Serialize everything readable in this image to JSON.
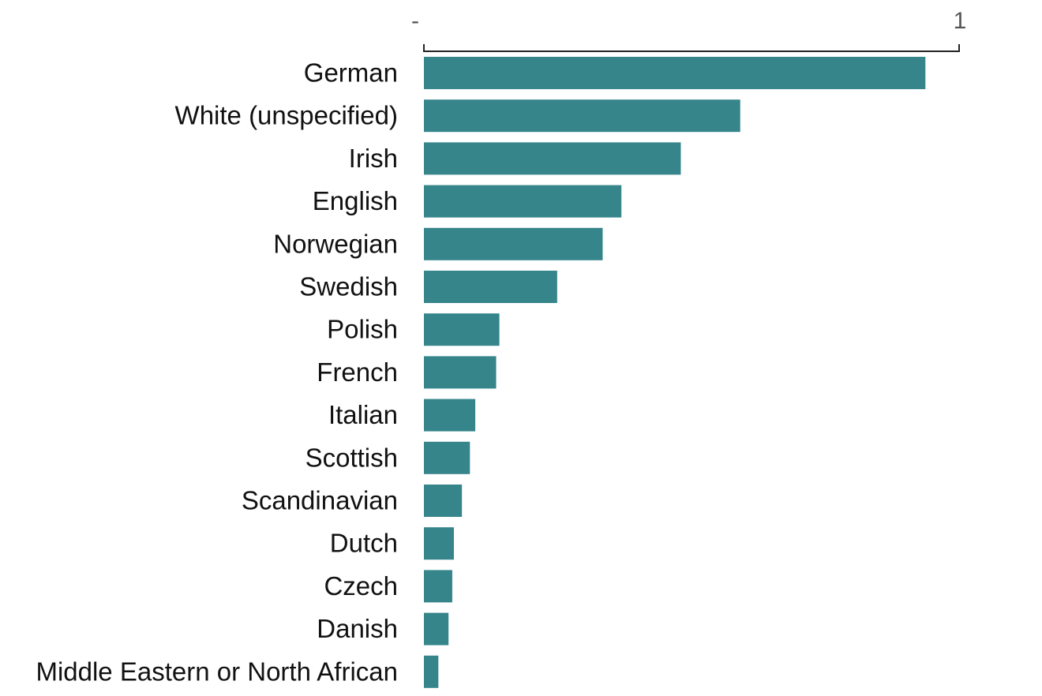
{
  "chart_data": {
    "type": "bar",
    "orientation": "horizontal",
    "title": "",
    "xlabel": "",
    "ylabel": "",
    "categories": [
      "German",
      "White (unspecified)",
      "Irish",
      "English",
      "Norwegian",
      "Swedish",
      "Polish",
      "French",
      "Italian",
      "Scottish",
      "Scandinavian",
      "Dutch",
      "Czech",
      "Danish",
      "Middle Eastern or North African"
    ],
    "values": [
      0.937,
      0.591,
      0.48,
      0.369,
      0.334,
      0.249,
      0.141,
      0.135,
      0.096,
      0.086,
      0.071,
      0.056,
      0.053,
      0.046,
      0.027
    ],
    "xlim": [
      0,
      1
    ],
    "x_tick_labels": [
      "-",
      "1"
    ],
    "axis_position": "top",
    "legend": "none",
    "grid": false,
    "bar_color": "#35858B"
  }
}
